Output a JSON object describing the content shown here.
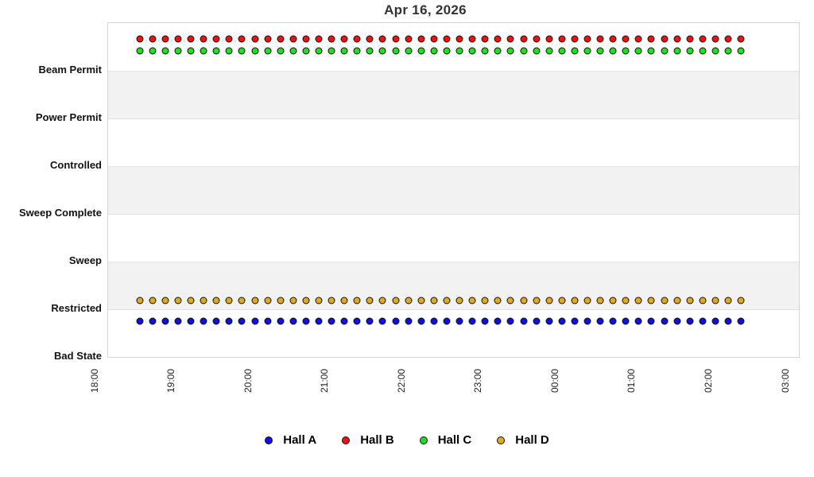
{
  "title": "Apr 16, 2026",
  "y_axis": {
    "categories": [
      "Beam Permit",
      "Power Permit",
      "Controlled",
      "Sweep Complete",
      "Sweep",
      "Restricted",
      "Bad State"
    ]
  },
  "x_axis": {
    "ticks": [
      "18:00",
      "19:00",
      "20:00",
      "21:00",
      "22:00",
      "23:00",
      "00:00",
      "01:00",
      "02:00",
      "03:00"
    ]
  },
  "legend": {
    "items": [
      {
        "label": "Hall A",
        "color": "#1111DD"
      },
      {
        "label": "Hall B",
        "color": "#EE1111"
      },
      {
        "label": "Hall C",
        "color": "#22DD22"
      },
      {
        "label": "Hall D",
        "color": "#DDAA22"
      }
    ]
  },
  "chart_data": {
    "type": "scatter",
    "title": "Apr 16, 2026",
    "xlabel": "",
    "ylabel": "",
    "x_range": [
      "18:00",
      "03:00"
    ],
    "x_tick_labels": [
      "18:00",
      "19:00",
      "20:00",
      "21:00",
      "22:00",
      "23:00",
      "00:00",
      "01:00",
      "02:00",
      "03:00"
    ],
    "y_categories_top_to_bottom": [
      "Beam Permit",
      "Power Permit",
      "Controlled",
      "Sweep Complete",
      "Sweep",
      "Restricted",
      "Bad State"
    ],
    "interval_minutes": 10,
    "marker": "circle",
    "grid": "alternating horizontal bands",
    "legend_position": "bottom",
    "times": [
      "18:25",
      "18:35",
      "18:45",
      "18:55",
      "19:05",
      "19:15",
      "19:25",
      "19:35",
      "19:45",
      "19:55",
      "20:05",
      "20:15",
      "20:25",
      "20:35",
      "20:45",
      "20:55",
      "21:05",
      "21:15",
      "21:25",
      "21:35",
      "21:45",
      "21:55",
      "22:05",
      "22:15",
      "22:25",
      "22:35",
      "22:45",
      "22:55",
      "23:05",
      "23:15",
      "23:25",
      "23:35",
      "23:45",
      "23:55",
      "00:05",
      "00:15",
      "00:25",
      "00:35",
      "00:45",
      "00:55",
      "01:05",
      "01:15",
      "01:25",
      "01:35",
      "01:45",
      "01:55",
      "02:05",
      "02:15"
    ],
    "series": [
      {
        "name": "Hall A",
        "color": "#1111DD",
        "values": [
          "Restricted",
          "Restricted",
          "Restricted",
          "Restricted",
          "Restricted",
          "Restricted",
          "Restricted",
          "Restricted",
          "Restricted",
          "Restricted",
          "Restricted",
          "Restricted",
          "Restricted",
          "Restricted",
          "Restricted",
          "Restricted",
          "Restricted",
          "Restricted",
          "Restricted",
          "Restricted",
          "Restricted",
          "Restricted",
          "Restricted",
          "Restricted",
          "Restricted",
          "Restricted",
          "Restricted",
          "Restricted",
          "Restricted",
          "Restricted",
          "Restricted",
          "Restricted",
          "Restricted",
          "Restricted",
          "Restricted",
          "Restricted",
          "Restricted",
          "Restricted",
          "Restricted",
          "Restricted",
          "Restricted",
          "Restricted",
          "Restricted",
          "Restricted",
          "Restricted",
          "Restricted",
          "Restricted",
          "Restricted"
        ]
      },
      {
        "name": "Hall B",
        "color": "#EE1111",
        "values": [
          "Beam Permit",
          "Beam Permit",
          "Beam Permit",
          "Beam Permit",
          "Beam Permit",
          "Beam Permit",
          "Beam Permit",
          "Beam Permit",
          "Beam Permit",
          "Beam Permit",
          "Beam Permit",
          "Beam Permit",
          "Beam Permit",
          "Beam Permit",
          "Beam Permit",
          "Beam Permit",
          "Beam Permit",
          "Beam Permit",
          "Beam Permit",
          "Beam Permit",
          "Beam Permit",
          "Beam Permit",
          "Beam Permit",
          "Beam Permit",
          "Beam Permit",
          "Beam Permit",
          "Beam Permit",
          "Beam Permit",
          "Beam Permit",
          "Beam Permit",
          "Beam Permit",
          "Beam Permit",
          "Beam Permit",
          "Beam Permit",
          "Beam Permit",
          "Beam Permit",
          "Beam Permit",
          "Beam Permit",
          "Beam Permit",
          "Beam Permit",
          "Beam Permit",
          "Beam Permit",
          "Beam Permit",
          "Beam Permit",
          "Beam Permit",
          "Beam Permit",
          "Beam Permit",
          "Beam Permit"
        ]
      },
      {
        "name": "Hall C",
        "color": "#22DD22",
        "values": [
          "Beam Permit",
          "Beam Permit",
          "Beam Permit",
          "Beam Permit",
          "Beam Permit",
          "Beam Permit",
          "Beam Permit",
          "Beam Permit",
          "Beam Permit",
          "Beam Permit",
          "Beam Permit",
          "Beam Permit",
          "Beam Permit",
          "Beam Permit",
          "Beam Permit",
          "Beam Permit",
          "Beam Permit",
          "Beam Permit",
          "Beam Permit",
          "Beam Permit",
          "Beam Permit",
          "Beam Permit",
          "Beam Permit",
          "Beam Permit",
          "Beam Permit",
          "Beam Permit",
          "Beam Permit",
          "Beam Permit",
          "Beam Permit",
          "Beam Permit",
          "Beam Permit",
          "Beam Permit",
          "Beam Permit",
          "Beam Permit",
          "Beam Permit",
          "Beam Permit",
          "Beam Permit",
          "Beam Permit",
          "Beam Permit",
          "Beam Permit",
          "Beam Permit",
          "Beam Permit",
          "Beam Permit",
          "Beam Permit",
          "Beam Permit",
          "Beam Permit",
          "Beam Permit",
          "Beam Permit"
        ]
      },
      {
        "name": "Hall D",
        "color": "#DDAA22",
        "values": [
          "Restricted",
          "Restricted",
          "Restricted",
          "Restricted",
          "Restricted",
          "Restricted",
          "Restricted",
          "Restricted",
          "Restricted",
          "Restricted",
          "Restricted",
          "Restricted",
          "Restricted",
          "Restricted",
          "Restricted",
          "Restricted",
          "Restricted",
          "Restricted",
          "Restricted",
          "Restricted",
          "Restricted",
          "Restricted",
          "Restricted",
          "Restricted",
          "Restricted",
          "Restricted",
          "Restricted",
          "Restricted",
          "Restricted",
          "Restricted",
          "Restricted",
          "Restricted",
          "Restricted",
          "Restricted",
          "Restricted",
          "Restricted",
          "Restricted",
          "Restricted",
          "Restricted",
          "Restricted",
          "Restricted",
          "Restricted",
          "Restricted",
          "Restricted",
          "Restricted",
          "Restricted",
          "Restricted",
          "Restricted"
        ]
      }
    ]
  }
}
